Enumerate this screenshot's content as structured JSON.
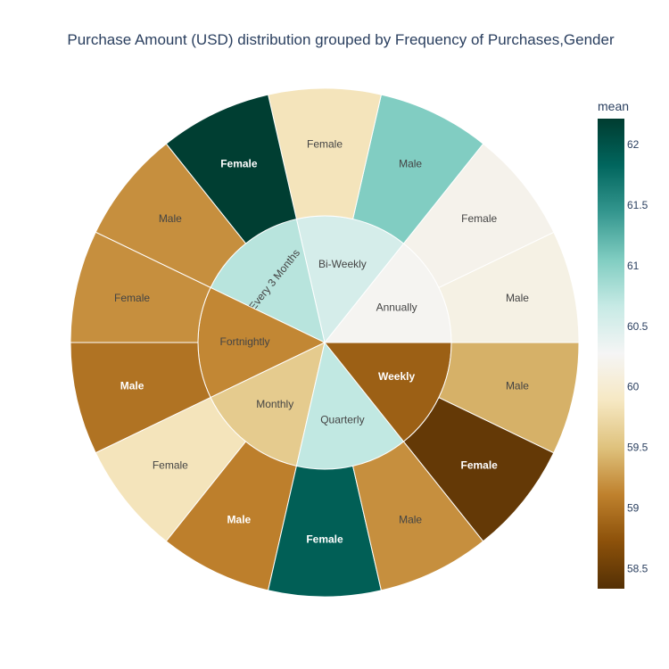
{
  "chart_data": {
    "type": "sunburst",
    "title": "Purchase Amount (USD) distribution grouped by Frequency of Purchases,Gender",
    "colorbar": {
      "title": "mean",
      "range": [
        58.34,
        62.22
      ],
      "ticks": [
        "58.5",
        "59",
        "59.5",
        "60",
        "60.5",
        "61",
        "61.5",
        "62"
      ]
    },
    "groups": [
      {
        "name": "Annually",
        "mean": 60.25,
        "children": [
          {
            "name": "Male",
            "mean": 60.15
          },
          {
            "name": "Female",
            "mean": 60.2
          }
        ]
      },
      {
        "name": "Bi-Weekly",
        "mean": 60.55,
        "children": [
          {
            "name": "Male",
            "mean": 61.05
          },
          {
            "name": "Female",
            "mean": 59.85
          }
        ]
      },
      {
        "name": "Every 3 Months",
        "mean": 60.75,
        "children": [
          {
            "name": "Female",
            "mean": 62.2
          },
          {
            "name": "Male",
            "mean": 59.2
          }
        ]
      },
      {
        "name": "Fortnightly",
        "mean": 59.15,
        "children": [
          {
            "name": "Female",
            "mean": 59.2
          },
          {
            "name": "Male",
            "mean": 59.0
          }
        ]
      },
      {
        "name": "Monthly",
        "mean": 59.6,
        "children": [
          {
            "name": "Female",
            "mean": 59.85
          },
          {
            "name": "Male",
            "mean": 59.1
          }
        ]
      },
      {
        "name": "Quarterly",
        "mean": 60.7,
        "children": [
          {
            "name": "Female",
            "mean": 61.9
          },
          {
            "name": "Male",
            "mean": 59.2
          }
        ]
      },
      {
        "name": "Weekly",
        "mean": 58.85,
        "children": [
          {
            "name": "Female",
            "mean": 58.45
          },
          {
            "name": "Male",
            "mean": 59.4
          }
        ]
      }
    ]
  }
}
